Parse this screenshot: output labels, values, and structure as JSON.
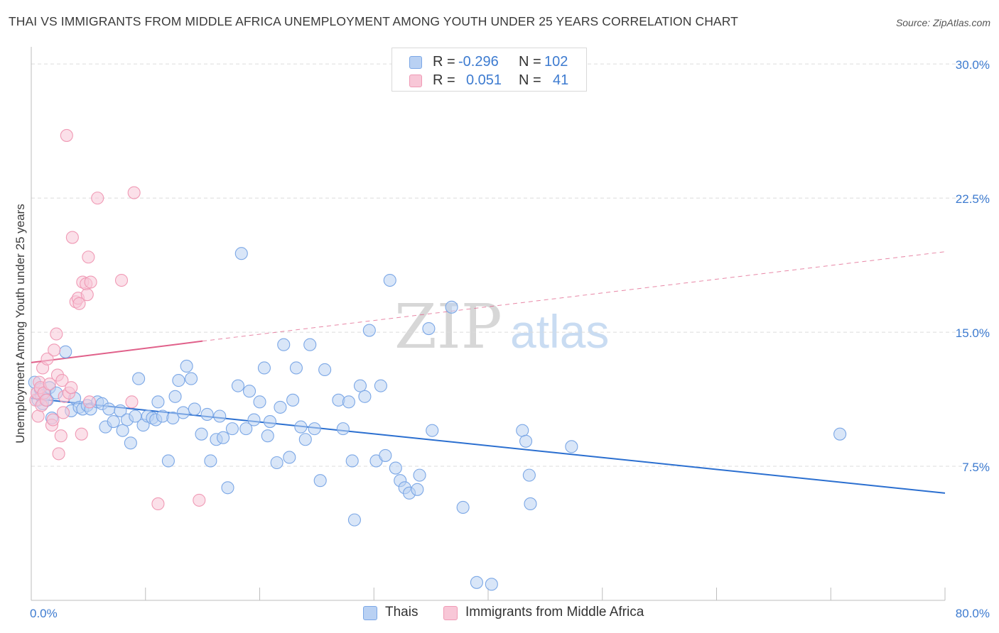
{
  "chart_data": {
    "type": "scatter",
    "title": "THAI VS IMMIGRANTS FROM MIDDLE AFRICA UNEMPLOYMENT AMONG YOUTH UNDER 25 YEARS CORRELATION CHART",
    "source": "Source: ZipAtlas.com",
    "ylabel": "Unemployment Among Youth under 25 years",
    "xlabel": "",
    "xlim": [
      0,
      80
    ],
    "ylim": [
      0,
      30.8
    ],
    "x_tick_labels": [
      "0.0%",
      "80.0%"
    ],
    "y_ticks": [
      7.5,
      15.0,
      22.5,
      30.0
    ],
    "y_tick_labels": [
      "7.5%",
      "15.0%",
      "22.5%",
      "30.0%"
    ],
    "grid": true,
    "watermark": "ZIPatlas",
    "legend_top": [
      {
        "r_label": "R =",
        "r_value": "-0.296",
        "n_label": "N =",
        "n_value": "102",
        "color": "#7ba7e6"
      },
      {
        "r_label": "R =",
        "r_value": "0.051",
        "n_label": "N =",
        "n_value": "41",
        "color": "#f09ab5"
      }
    ],
    "series": [
      {
        "name": "Thais",
        "color": "#7ba7e6",
        "fill": "#b9d1f3",
        "trend": {
          "x": [
            0,
            80
          ],
          "y": [
            11.3,
            6.0
          ],
          "color": "#2b6fd0",
          "style": "solid"
        },
        "points": [
          [
            0.3,
            12.2
          ],
          [
            0.5,
            11.6
          ],
          [
            0.6,
            11.2
          ],
          [
            0.8,
            11.8
          ],
          [
            0.9,
            11.4
          ],
          [
            1.0,
            11.0
          ],
          [
            1.2,
            11.5
          ],
          [
            1.4,
            11.2
          ],
          [
            1.6,
            11.9
          ],
          [
            1.8,
            10.2
          ],
          [
            2.2,
            11.6
          ],
          [
            3.0,
            13.9
          ],
          [
            3.5,
            10.6
          ],
          [
            3.8,
            11.3
          ],
          [
            4.2,
            10.8
          ],
          [
            4.5,
            10.7
          ],
          [
            4.9,
            10.9
          ],
          [
            5.2,
            10.7
          ],
          [
            5.8,
            11.1
          ],
          [
            6.2,
            11.0
          ],
          [
            6.5,
            9.7
          ],
          [
            6.8,
            10.7
          ],
          [
            7.2,
            10.0
          ],
          [
            7.8,
            10.6
          ],
          [
            8.0,
            9.5
          ],
          [
            8.4,
            10.1
          ],
          [
            8.7,
            8.8
          ],
          [
            9.1,
            10.3
          ],
          [
            9.4,
            12.4
          ],
          [
            9.8,
            9.8
          ],
          [
            10.2,
            10.3
          ],
          [
            10.6,
            10.2
          ],
          [
            10.9,
            10.1
          ],
          [
            11.1,
            11.1
          ],
          [
            11.5,
            10.3
          ],
          [
            12.0,
            7.8
          ],
          [
            12.4,
            10.2
          ],
          [
            12.6,
            11.4
          ],
          [
            12.9,
            12.3
          ],
          [
            13.3,
            10.5
          ],
          [
            13.6,
            13.1
          ],
          [
            14.0,
            12.4
          ],
          [
            14.3,
            10.7
          ],
          [
            14.9,
            9.3
          ],
          [
            15.4,
            10.4
          ],
          [
            15.7,
            7.8
          ],
          [
            16.2,
            9.0
          ],
          [
            16.5,
            10.3
          ],
          [
            16.8,
            9.1
          ],
          [
            17.2,
            6.3
          ],
          [
            17.6,
            9.6
          ],
          [
            18.1,
            12.0
          ],
          [
            18.4,
            19.4
          ],
          [
            18.8,
            9.6
          ],
          [
            19.1,
            11.7
          ],
          [
            19.5,
            10.1
          ],
          [
            20.0,
            11.1
          ],
          [
            20.4,
            13.0
          ],
          [
            20.7,
            9.2
          ],
          [
            20.9,
            10.0
          ],
          [
            21.5,
            7.7
          ],
          [
            21.8,
            10.8
          ],
          [
            22.1,
            14.3
          ],
          [
            22.6,
            8.0
          ],
          [
            22.9,
            11.2
          ],
          [
            23.2,
            13.0
          ],
          [
            23.6,
            9.7
          ],
          [
            24.0,
            9.0
          ],
          [
            24.4,
            14.3
          ],
          [
            24.8,
            9.6
          ],
          [
            25.3,
            6.7
          ],
          [
            25.7,
            12.9
          ],
          [
            26.9,
            11.2
          ],
          [
            27.3,
            9.6
          ],
          [
            27.8,
            11.1
          ],
          [
            28.1,
            7.8
          ],
          [
            28.3,
            4.5
          ],
          [
            28.8,
            12.0
          ],
          [
            29.2,
            11.4
          ],
          [
            29.6,
            15.1
          ],
          [
            30.2,
            7.8
          ],
          [
            30.6,
            12.0
          ],
          [
            31.0,
            8.1
          ],
          [
            31.4,
            17.9
          ],
          [
            31.9,
            7.4
          ],
          [
            32.3,
            6.7
          ],
          [
            32.7,
            6.3
          ],
          [
            33.1,
            6.0
          ],
          [
            33.8,
            6.2
          ],
          [
            34.0,
            7.0
          ],
          [
            34.8,
            15.2
          ],
          [
            35.1,
            9.5
          ],
          [
            36.8,
            16.4
          ],
          [
            37.8,
            5.2
          ],
          [
            39.0,
            1.0
          ],
          [
            40.3,
            0.9
          ],
          [
            43.0,
            9.5
          ],
          [
            43.3,
            8.9
          ],
          [
            43.6,
            7.0
          ],
          [
            43.7,
            5.4
          ],
          [
            47.3,
            8.6
          ],
          [
            70.8,
            9.3
          ]
        ]
      },
      {
        "name": "Immigrants from Middle Africa",
        "color": "#f09ab5",
        "fill": "#f8c7d7",
        "trend": {
          "x": [
            0,
            15
          ],
          "y": [
            13.3,
            14.5
          ],
          "x_ext": [
            15,
            80
          ],
          "y_ext": [
            14.5,
            19.5
          ],
          "color": "#e0608a",
          "style": "solid+dashed"
        },
        "points": [
          [
            0.4,
            11.2
          ],
          [
            0.5,
            11.6
          ],
          [
            0.6,
            10.3
          ],
          [
            0.7,
            12.2
          ],
          [
            0.8,
            11.9
          ],
          [
            0.9,
            10.9
          ],
          [
            1.0,
            13.0
          ],
          [
            1.1,
            11.6
          ],
          [
            1.3,
            11.2
          ],
          [
            1.4,
            13.5
          ],
          [
            1.6,
            12.1
          ],
          [
            1.8,
            9.8
          ],
          [
            1.9,
            10.1
          ],
          [
            2.0,
            14.0
          ],
          [
            2.2,
            14.9
          ],
          [
            2.3,
            12.6
          ],
          [
            2.4,
            8.2
          ],
          [
            2.6,
            9.2
          ],
          [
            2.7,
            12.3
          ],
          [
            2.8,
            10.5
          ],
          [
            2.9,
            11.4
          ],
          [
            3.1,
            26.0
          ],
          [
            3.3,
            11.6
          ],
          [
            3.5,
            11.9
          ],
          [
            3.6,
            20.3
          ],
          [
            3.9,
            16.7
          ],
          [
            4.1,
            16.9
          ],
          [
            4.2,
            16.6
          ],
          [
            4.4,
            9.3
          ],
          [
            4.5,
            17.8
          ],
          [
            4.8,
            17.7
          ],
          [
            4.9,
            17.1
          ],
          [
            5.0,
            19.2
          ],
          [
            5.1,
            11.1
          ],
          [
            5.2,
            17.8
          ],
          [
            5.8,
            22.5
          ],
          [
            7.9,
            17.9
          ],
          [
            8.8,
            11.1
          ],
          [
            9.0,
            22.8
          ],
          [
            11.1,
            5.4
          ],
          [
            14.7,
            5.6
          ]
        ]
      }
    ]
  }
}
